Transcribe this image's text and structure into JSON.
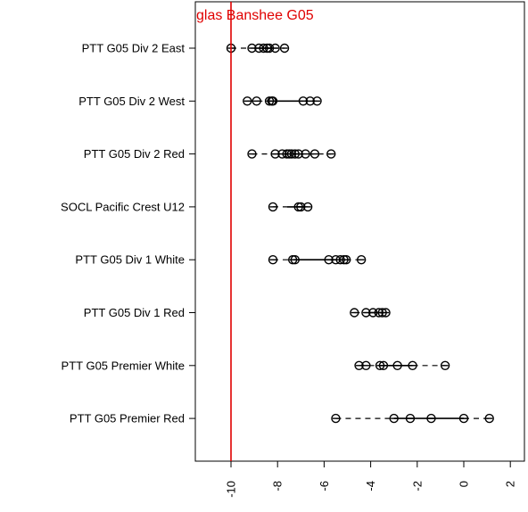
{
  "chart_data": {
    "type": "boxplot-horizontal",
    "title": "",
    "xlabel": "",
    "ylabel": "",
    "xlim": [
      -11.0,
      2.3
    ],
    "grid": false,
    "reference_line": {
      "value": -10.0,
      "label": "glas Banshee G05",
      "color": "#e00000"
    },
    "x_ticks": [
      -10,
      -8,
      -6,
      -4,
      -2,
      0,
      2
    ],
    "x_tick_labels": [
      "-10",
      "-8",
      "-6",
      "-4",
      "-2",
      "0",
      "2"
    ],
    "categories": [
      "PTT G05 Div 2 East",
      "PTT G05 Div 2 West",
      "PTT G05 Div 2 Red",
      "SOCL Pacific Crest U12",
      "PTT G05 Div 1 White",
      "PTT G05 Div 1 Red",
      "PTT G05 Premier White",
      "PTT G05 Premier Red"
    ],
    "boxes": [
      {
        "category": "PTT G05 Div 2 East",
        "min": -10.0,
        "q1": -8.9,
        "median": -8.4,
        "q3": -8.2,
        "max": -7.7,
        "points": [
          -10.0,
          -9.1,
          -8.8,
          -8.6,
          -8.45,
          -8.35,
          -8.1,
          -7.7
        ]
      },
      {
        "category": "PTT G05 Div 2 West",
        "min": -9.3,
        "q1": -8.3,
        "median": -8.2,
        "q3": -6.9,
        "max": -6.3,
        "points": [
          -9.3,
          -8.9,
          -8.35,
          -8.25,
          -8.2,
          -6.9,
          -6.6,
          -6.3
        ]
      },
      {
        "category": "PTT G05 Div 2 Red",
        "min": -9.1,
        "q1": -7.7,
        "median": -7.45,
        "q3": -7.1,
        "max": -5.7,
        "points": [
          -9.1,
          -8.1,
          -7.8,
          -7.6,
          -7.5,
          -7.4,
          -7.25,
          -7.1,
          -6.8,
          -6.4,
          -5.7
        ]
      },
      {
        "category": "SOCL Pacific Crest U12",
        "min": -8.2,
        "q1": -7.6,
        "median": -7.1,
        "q3": -6.9,
        "max": -6.7,
        "points": [
          -8.2,
          -7.1,
          -7.0,
          -6.7
        ]
      },
      {
        "category": "PTT G05 Div 1 White",
        "min": -8.2,
        "q1": -7.3,
        "median": -7.25,
        "q3": -5.5,
        "max": -4.4,
        "points": [
          -8.2,
          -7.35,
          -7.25,
          -5.8,
          -5.5,
          -5.3,
          -5.15,
          -5.05,
          -4.4
        ]
      },
      {
        "category": "PTT G05 Div 1 Red",
        "min": -4.7,
        "q1": -4.0,
        "median": -3.6,
        "q3": -3.45,
        "max": -3.35,
        "points": [
          -4.7,
          -4.2,
          -3.9,
          -3.65,
          -3.5,
          -3.35
        ]
      },
      {
        "category": "PTT G05 Premier White",
        "min": -4.5,
        "q1": -3.6,
        "median": -3.1,
        "q3": -2.2,
        "max": -0.8,
        "points": [
          -4.5,
          -4.2,
          -3.6,
          -3.45,
          -2.85,
          -2.2,
          -0.8
        ]
      },
      {
        "category": "PTT G05 Premier Red",
        "min": -5.5,
        "q1": -3.0,
        "median": -2.3,
        "q3": 0.0,
        "max": 1.1,
        "points": [
          -5.5,
          -3.0,
          -2.3,
          -1.4,
          0.0,
          1.1
        ]
      }
    ]
  }
}
